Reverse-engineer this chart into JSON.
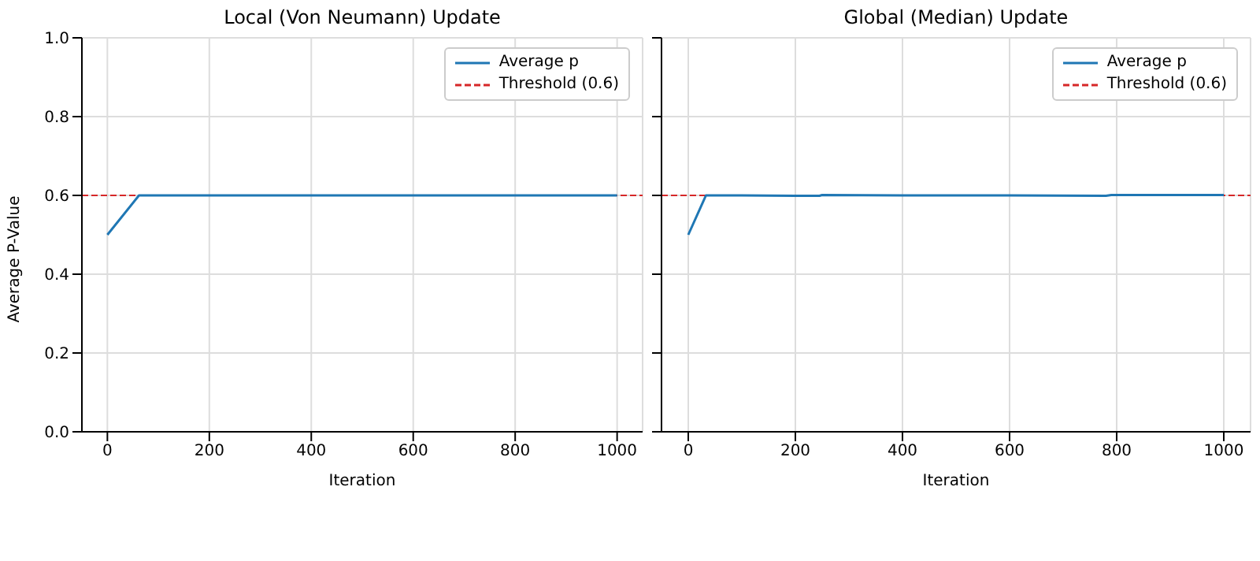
{
  "chart_data": [
    {
      "type": "line",
      "title": "Local (Von Neumann) Update",
      "xlabel": "Iteration",
      "ylabel": "Average P-Value",
      "x": [
        0,
        62,
        100,
        200,
        300,
        400,
        500,
        600,
        700,
        800,
        900,
        1000
      ],
      "series": [
        {
          "name": "Average p",
          "color": "#1f77b4",
          "values": [
            0.5,
            0.6,
            0.6,
            0.6,
            0.6,
            0.6,
            0.6,
            0.6,
            0.6,
            0.6,
            0.6,
            0.6
          ]
        }
      ],
      "ref_lines": [
        {
          "axis": "y",
          "value": 0.6,
          "label": "Threshold (0.6)",
          "color": "#d62728",
          "line_style": "dashed"
        }
      ],
      "xlim": [
        -50,
        1050
      ],
      "xticks": [
        0,
        200,
        400,
        600,
        800,
        1000
      ],
      "ylim": [
        0,
        1
      ],
      "yticks": [
        {
          "value": 0,
          "label": "0.0"
        },
        0.2,
        0.4,
        0.6,
        0.8,
        {
          "value": 1,
          "label": "1.0"
        }
      ],
      "grid": true,
      "legend": "top right"
    },
    {
      "type": "line",
      "title": "Global (Median) Update",
      "xlabel": "Iteration",
      "x": [
        0,
        33,
        100,
        200,
        245,
        250,
        400,
        600,
        780,
        790,
        800,
        1000
      ],
      "series": [
        {
          "name": "Average p",
          "color": "#1f77b4",
          "values": [
            0.5,
            0.6,
            0.6,
            0.599,
            0.599,
            0.601,
            0.6,
            0.6,
            0.599,
            0.601,
            0.601,
            0.601
          ]
        }
      ],
      "ref_lines": [
        {
          "axis": "y",
          "value": 0.6,
          "label": "Threshold (0.6)",
          "color": "#d62728",
          "line_style": "dashed"
        }
      ],
      "xlim": [
        -50,
        1050
      ],
      "xticks": [
        0,
        200,
        400,
        600,
        800,
        1000
      ],
      "ylim": [
        0,
        1
      ],
      "yticks": [
        0,
        0.2,
        0.4,
        0.6,
        0.8,
        1
      ],
      "grid": true,
      "legend": "top right",
      "tick_labels": "x"
    }
  ]
}
